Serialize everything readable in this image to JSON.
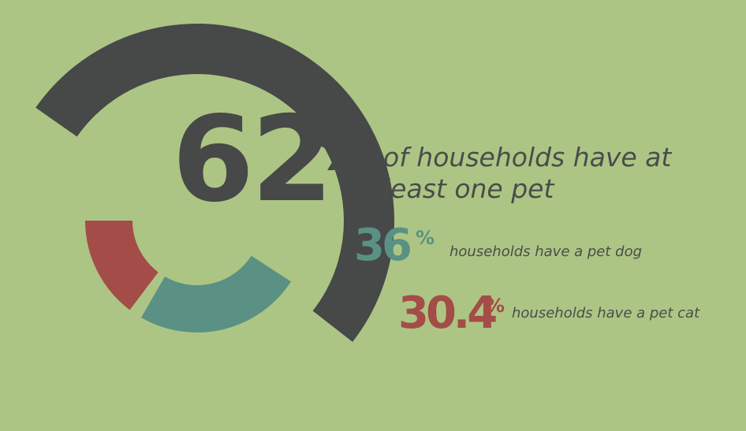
{
  "chart_data": {
    "type": "pie",
    "style": "radial-rings",
    "series": [
      {
        "value": 62,
        "label": "62",
        "unit": "%",
        "description": "of households have at least one pet",
        "color": "#474848"
      },
      {
        "value": 36,
        "label": "36",
        "unit": "%",
        "description": "households have a pet dog",
        "color": "#5a9184"
      },
      {
        "value": 30.4,
        "label": "30.4",
        "unit": "%",
        "description": "households have a pet cat",
        "color": "#a44c48"
      }
    ],
    "background": "#adc584"
  },
  "text": {
    "main_value": "62",
    "main_pct": "%",
    "main_desc_line1": "of households have at",
    "main_desc_line2": "least one pet",
    "dog_value": "36",
    "dog_pct": "%",
    "dog_desc": "households have a pet dog",
    "cat_value": "30.4",
    "cat_pct": "%",
    "cat_desc": "households have a pet cat"
  }
}
